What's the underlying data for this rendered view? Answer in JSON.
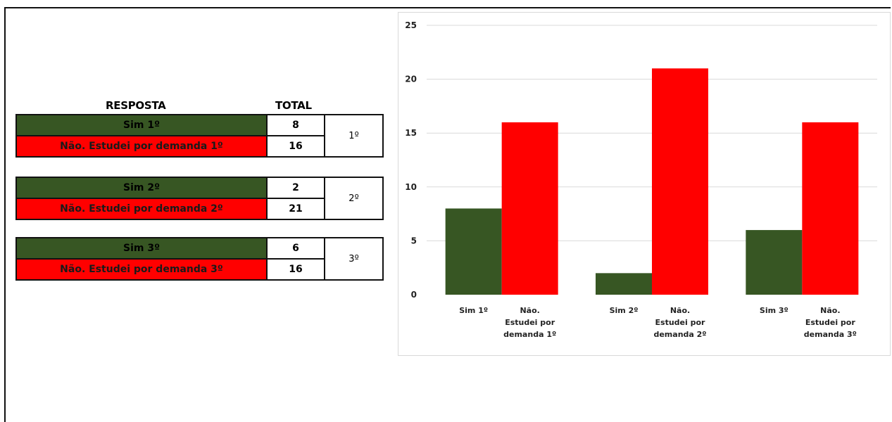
{
  "table": {
    "header_resposta": "RESPOSTA",
    "header_total": "TOTAL",
    "groups": [
      {
        "label": "1º",
        "rows": [
          {
            "resposta": "Sim 1º",
            "total": "8",
            "kind": "sim"
          },
          {
            "resposta": "Não. Estudei por demanda 1º",
            "total": "16",
            "kind": "nao"
          }
        ]
      },
      {
        "label": "2º",
        "rows": [
          {
            "resposta": "Sim 2º",
            "total": "2",
            "kind": "sim"
          },
          {
            "resposta": "Não. Estudei por demanda 2º",
            "total": "21",
            "kind": "nao"
          }
        ]
      },
      {
        "label": "3º",
        "rows": [
          {
            "resposta": "Sim 3º",
            "total": "6",
            "kind": "sim"
          },
          {
            "resposta": "Não. Estudei por demanda 3º",
            "total": "16",
            "kind": "nao"
          }
        ]
      }
    ]
  },
  "colors": {
    "sim": "#375623",
    "nao": "#ff0000",
    "grid": "#d9d9d9"
  },
  "chart_data": {
    "type": "bar",
    "categories": [
      [
        "Sim 1º"
      ],
      [
        "Não.",
        "Estudei por",
        "demanda 1º"
      ],
      [
        "Sim 2º"
      ],
      [
        "Não.",
        "Estudei por",
        "demanda 2º"
      ],
      [
        "Sim 3º"
      ],
      [
        "Não.",
        "Estudei por",
        "demanda 3º"
      ]
    ],
    "values": [
      8,
      16,
      2,
      21,
      6,
      16
    ],
    "bar_colors": [
      "#375623",
      "#ff0000",
      "#375623",
      "#ff0000",
      "#375623",
      "#ff0000"
    ],
    "title": "",
    "xlabel": "",
    "ylabel": "",
    "ylim": [
      0,
      25
    ],
    "yticks": [
      0,
      5,
      10,
      15,
      20,
      25
    ],
    "grid": true,
    "legend": "none"
  }
}
